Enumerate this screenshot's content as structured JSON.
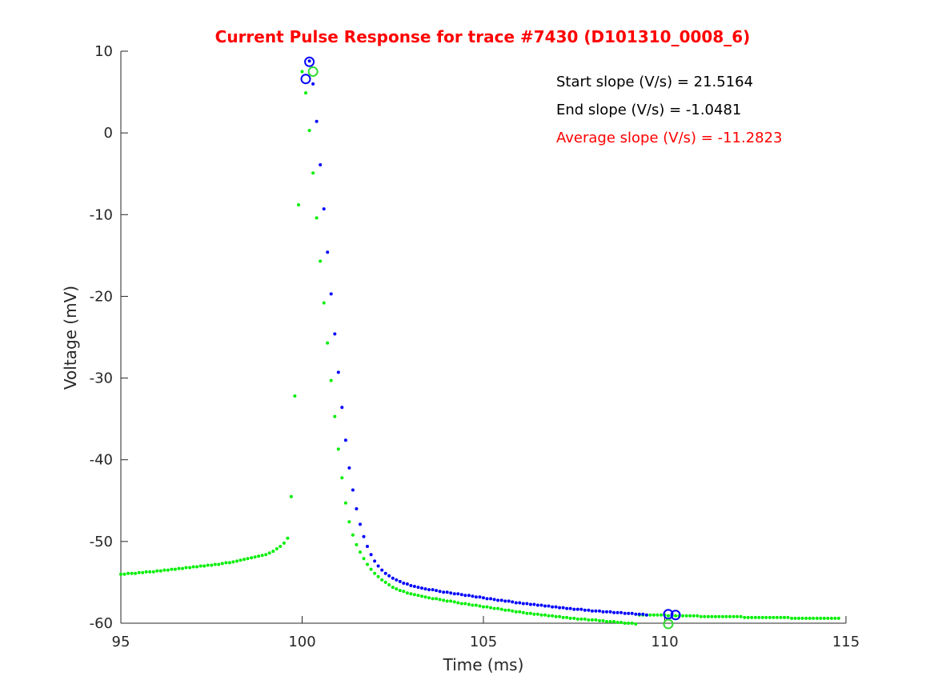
{
  "chart_data": {
    "type": "scatter",
    "title": "Current Pulse Response for trace #7430 (D101310_0008_6)",
    "xlabel": "Time (ms)",
    "ylabel": "Voltage (mV)",
    "xlim": [
      95,
      115
    ],
    "ylim": [
      -60,
      10
    ],
    "x_ticks": [
      95,
      100,
      105,
      110,
      115
    ],
    "y_ticks": [
      10,
      0,
      -10,
      -20,
      -30,
      -40,
      -50,
      -60
    ],
    "grid": false,
    "legend": "none",
    "annotations": [
      {
        "text": "Start slope (V/s) = 21.5164",
        "color": "#000000"
      },
      {
        "text": "End slope (V/s) = -1.0481",
        "color": "#000000"
      },
      {
        "text": "Average slope (V/s) = -11.2823",
        "color": "#ff0000"
      }
    ],
    "colors": {
      "title": "#ff0000",
      "series_blue": "#0000ff",
      "series_green": "#00ee00",
      "marker_blue": "#0000ff",
      "marker_green": "#33dd33"
    },
    "series": [
      {
        "color": "#00ee00",
        "x_start": 95,
        "dx": 0.1,
        "y": [
          -54.0,
          -54.0,
          -53.9,
          -53.9,
          -53.9,
          -53.8,
          -53.8,
          -53.7,
          -53.7,
          -53.7,
          -53.6,
          -53.6,
          -53.5,
          -53.5,
          -53.4,
          -53.4,
          -53.3,
          -53.3,
          -53.2,
          -53.2,
          -53.1,
          -53.1,
          -53.0,
          -53.0,
          -52.9,
          -52.9,
          -52.8,
          -52.8,
          -52.7,
          -52.6,
          -52.6,
          -52.5,
          -52.4,
          -52.3,
          -52.2,
          -52.1,
          -52.0,
          -51.9,
          -51.8,
          -51.7,
          -51.6,
          -51.4,
          -51.2,
          -50.9,
          -50.6,
          -50.2,
          -49.6,
          -44.5,
          -32.2,
          -8.8,
          7.5,
          4.9,
          0.3,
          -4.9,
          -10.4,
          -15.7,
          -20.8,
          -25.7,
          -30.3,
          -34.7,
          -38.7,
          -42.2,
          -45.3,
          -47.6,
          -49.2,
          -50.4,
          -51.3,
          -52.1,
          -52.8,
          -53.4,
          -53.9,
          -54.3,
          -54.7,
          -55.0,
          -55.3,
          -55.6,
          -55.8,
          -56.0,
          -56.1,
          -56.3,
          -56.4,
          -56.5,
          -56.6,
          -56.7,
          -56.8,
          -56.9,
          -57.0,
          -57.0,
          -57.1,
          -57.2,
          -57.3,
          -57.3,
          -57.4,
          -57.5,
          -57.6,
          -57.6,
          -57.7,
          -57.8,
          -57.8,
          -57.9,
          -58.0,
          -58.0,
          -58.1,
          -58.2,
          -58.2,
          -58.3,
          -58.4,
          -58.4,
          -58.5,
          -58.6,
          -58.6,
          -58.7,
          -58.8,
          -58.8,
          -58.9,
          -58.9,
          -59.0,
          -59.0,
          -59.1,
          -59.1,
          -59.2,
          -59.2,
          -59.3,
          -59.3,
          -59.4,
          -59.4,
          -59.5,
          -59.5,
          -59.5,
          -59.6,
          -59.6,
          -59.6,
          -59.7,
          -59.7,
          -59.8,
          -59.8,
          -59.8,
          -59.9,
          -59.9,
          -60.0,
          -60.0,
          -60.0,
          -60.1,
          -59.0,
          -59.0,
          -59.0,
          -59.0,
          -59.0,
          -59.0,
          -59.0,
          -59.0,
          -59.1,
          -59.1,
          -59.1,
          -59.1,
          -59.1,
          -59.1,
          -59.1,
          -59.1,
          -59.1,
          -59.2,
          -59.2,
          -59.2,
          -59.2,
          -59.2,
          -59.2,
          -59.2,
          -59.2,
          -59.2,
          -59.2,
          -59.2,
          -59.2,
          -59.3,
          -59.3,
          -59.3,
          -59.3,
          -59.3,
          -59.3,
          -59.3,
          -59.3,
          -59.3,
          -59.3,
          -59.3,
          -59.3,
          -59.3,
          -59.4,
          -59.4,
          -59.4,
          -59.4,
          -59.4,
          -59.4,
          -59.4,
          -59.4,
          -59.4,
          -59.4,
          -59.4,
          -59.4,
          -59.4,
          -59.4
        ]
      },
      {
        "color": "#0000ff",
        "x_start": 100.2,
        "dx": 0.1,
        "y": [
          8.8,
          6.0,
          1.4,
          -3.9,
          -9.3,
          -14.6,
          -19.7,
          -24.6,
          -29.3,
          -33.6,
          -37.6,
          -41.0,
          -43.7,
          -46.0,
          -47.9,
          -49.4,
          -50.6,
          -51.6,
          -52.4,
          -53.0,
          -53.5,
          -53.9,
          -54.2,
          -54.5,
          -54.7,
          -54.9,
          -55.1,
          -55.2,
          -55.4,
          -55.5,
          -55.6,
          -55.7,
          -55.8,
          -55.9,
          -55.9,
          -56.0,
          -56.1,
          -56.2,
          -56.2,
          -56.3,
          -56.4,
          -56.4,
          -56.5,
          -56.6,
          -56.6,
          -56.7,
          -56.8,
          -56.8,
          -56.9,
          -57.0,
          -57.0,
          -57.1,
          -57.2,
          -57.2,
          -57.3,
          -57.3,
          -57.4,
          -57.5,
          -57.5,
          -57.6,
          -57.6,
          -57.7,
          -57.7,
          -57.8,
          -57.8,
          -57.9,
          -57.9,
          -58.0,
          -58.0,
          -58.1,
          -58.1,
          -58.2,
          -58.2,
          -58.3,
          -58.3,
          -58.3,
          -58.4,
          -58.4,
          -58.5,
          -58.5,
          -58.5,
          -58.6,
          -58.6,
          -58.6,
          -58.7,
          -58.7,
          -58.7,
          -58.8,
          -58.8,
          -58.8,
          -58.9,
          -58.9,
          -58.9,
          -59.0
        ]
      }
    ],
    "markers": [
      {
        "x": 100.1,
        "y": 6.6,
        "color": "#0000ff"
      },
      {
        "x": 100.2,
        "y": 8.7,
        "color": "#0000ff"
      },
      {
        "x": 100.3,
        "y": 7.5,
        "color": "#33dd33"
      },
      {
        "x": 110.1,
        "y": -58.9,
        "color": "#0000ff"
      },
      {
        "x": 110.3,
        "y": -59.0,
        "color": "#0000ff"
      },
      {
        "x": 110.1,
        "y": -60.1,
        "color": "#33dd33"
      }
    ]
  }
}
